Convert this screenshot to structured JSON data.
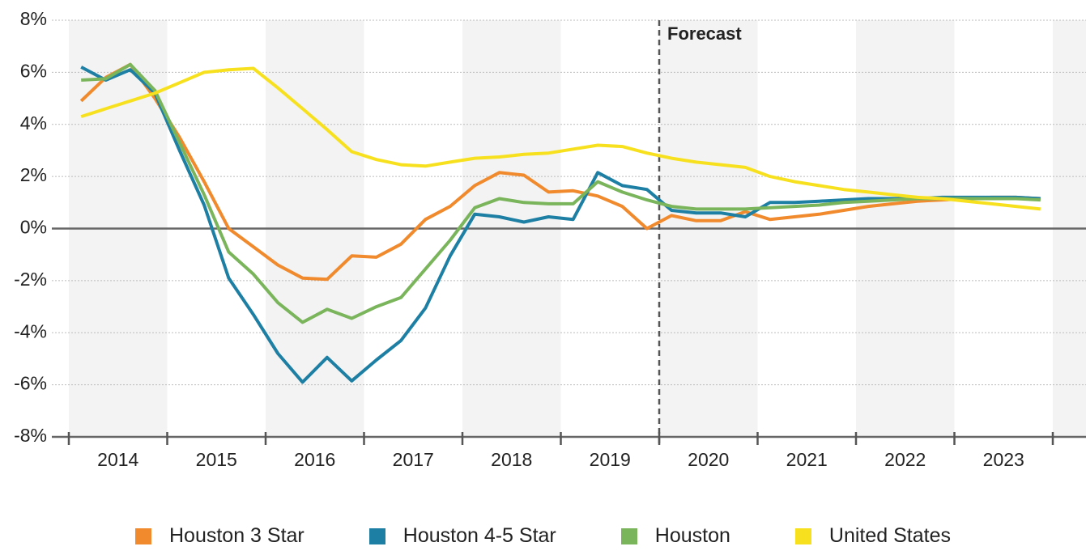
{
  "chart_data": {
    "type": "line",
    "x": [
      2014.125,
      2014.375,
      2014.625,
      2014.875,
      2015.125,
      2015.375,
      2015.625,
      2015.875,
      2016.125,
      2016.375,
      2016.625,
      2016.875,
      2017.125,
      2017.375,
      2017.625,
      2017.875,
      2018.125,
      2018.375,
      2018.625,
      2018.875,
      2019.125,
      2019.375,
      2019.625,
      2019.875,
      2020.125,
      2020.375,
      2020.625,
      2020.875,
      2021.125,
      2021.375,
      2021.625,
      2021.875,
      2022.125,
      2022.375,
      2022.625,
      2022.875,
      2023.125,
      2023.375,
      2023.625,
      2023.875
    ],
    "series": [
      {
        "name": "Houston 3 Star",
        "color": "#f08a2c",
        "values": [
          4.9,
          5.8,
          6.3,
          5.0,
          3.5,
          1.8,
          0,
          -0.7,
          -1.4,
          -1.9,
          -1.95,
          -1.05,
          -1.1,
          -0.6,
          0.35,
          0.85,
          1.65,
          2.15,
          2.05,
          1.4,
          1.45,
          1.25,
          0.85,
          0,
          0.5,
          0.3,
          0.3,
          0.65,
          0.35,
          0.45,
          0.55,
          0.7,
          0.85,
          0.95,
          1.05,
          1.1,
          1.15,
          1.2,
          1.2,
          1.15
        ]
      },
      {
        "name": "Houston 4-5 Star",
        "color": "#1d7fa3",
        "values": [
          6.2,
          5.7,
          6.1,
          5.2,
          3.0,
          0.9,
          -1.9,
          -3.3,
          -4.8,
          -5.9,
          -4.95,
          -5.85,
          -5.05,
          -4.3,
          -3.05,
          -1.05,
          0.55,
          0.45,
          0.25,
          0.45,
          0.35,
          2.15,
          1.65,
          1.5,
          0.7,
          0.6,
          0.6,
          0.45,
          1.0,
          1.0,
          1.05,
          1.1,
          1.15,
          1.15,
          1.15,
          1.2,
          1.2,
          1.2,
          1.2,
          1.15
        ]
      },
      {
        "name": "Houston",
        "color": "#7ab55c",
        "values": [
          5.7,
          5.75,
          6.3,
          5.3,
          3.3,
          1.3,
          -0.9,
          -1.75,
          -2.85,
          -3.6,
          -3.1,
          -3.45,
          -3.0,
          -2.65,
          -1.55,
          -0.45,
          0.8,
          1.15,
          1.0,
          0.95,
          0.95,
          1.8,
          1.4,
          1.1,
          0.85,
          0.75,
          0.75,
          0.75,
          0.8,
          0.85,
          0.9,
          1.0,
          1.05,
          1.1,
          1.15,
          1.15,
          1.15,
          1.15,
          1.15,
          1.1
        ]
      },
      {
        "name": "United States",
        "color": "#f7e11f",
        "values": [
          4.3,
          4.6,
          4.9,
          5.2,
          5.6,
          6.0,
          6.1,
          6.15,
          5.4,
          4.6,
          3.8,
          2.95,
          2.65,
          2.45,
          2.4,
          2.55,
          2.7,
          2.75,
          2.85,
          2.9,
          3.05,
          3.2,
          3.15,
          2.9,
          2.7,
          2.55,
          2.45,
          2.35,
          2.0,
          1.8,
          1.65,
          1.5,
          1.4,
          1.3,
          1.2,
          1.15,
          1.05,
          0.95,
          0.85,
          0.75
        ]
      }
    ],
    "xlim": [
      2014,
      2024
    ],
    "xticks": [
      {
        "value": 2014.5,
        "label": "2014"
      },
      {
        "value": 2015.5,
        "label": "2015"
      },
      {
        "value": 2016.5,
        "label": "2016"
      },
      {
        "value": 2017.5,
        "label": "2017"
      },
      {
        "value": 2018.5,
        "label": "2018"
      },
      {
        "value": 2019.5,
        "label": "2019"
      },
      {
        "value": 2020.5,
        "label": "2020"
      },
      {
        "value": 2021.5,
        "label": "2021"
      },
      {
        "value": 2022.5,
        "label": "2022"
      },
      {
        "value": 2023.5,
        "label": "2023"
      }
    ],
    "ylim": [
      -8,
      8
    ],
    "yticks": [
      {
        "value": -8,
        "label": "-8%"
      },
      {
        "value": -6,
        "label": "-6%"
      },
      {
        "value": -4,
        "label": "-4%"
      },
      {
        "value": -2,
        "label": "-2%"
      },
      {
        "value": 0,
        "label": "0%"
      },
      {
        "value": 2,
        "label": "2%"
      },
      {
        "value": 4,
        "label": "4%"
      },
      {
        "value": 6,
        "label": "6%"
      },
      {
        "value": 8,
        "label": "8%"
      }
    ],
    "grid": true,
    "annotation": {
      "text": "Forecast",
      "x": 2020
    },
    "legend": "bottom"
  }
}
